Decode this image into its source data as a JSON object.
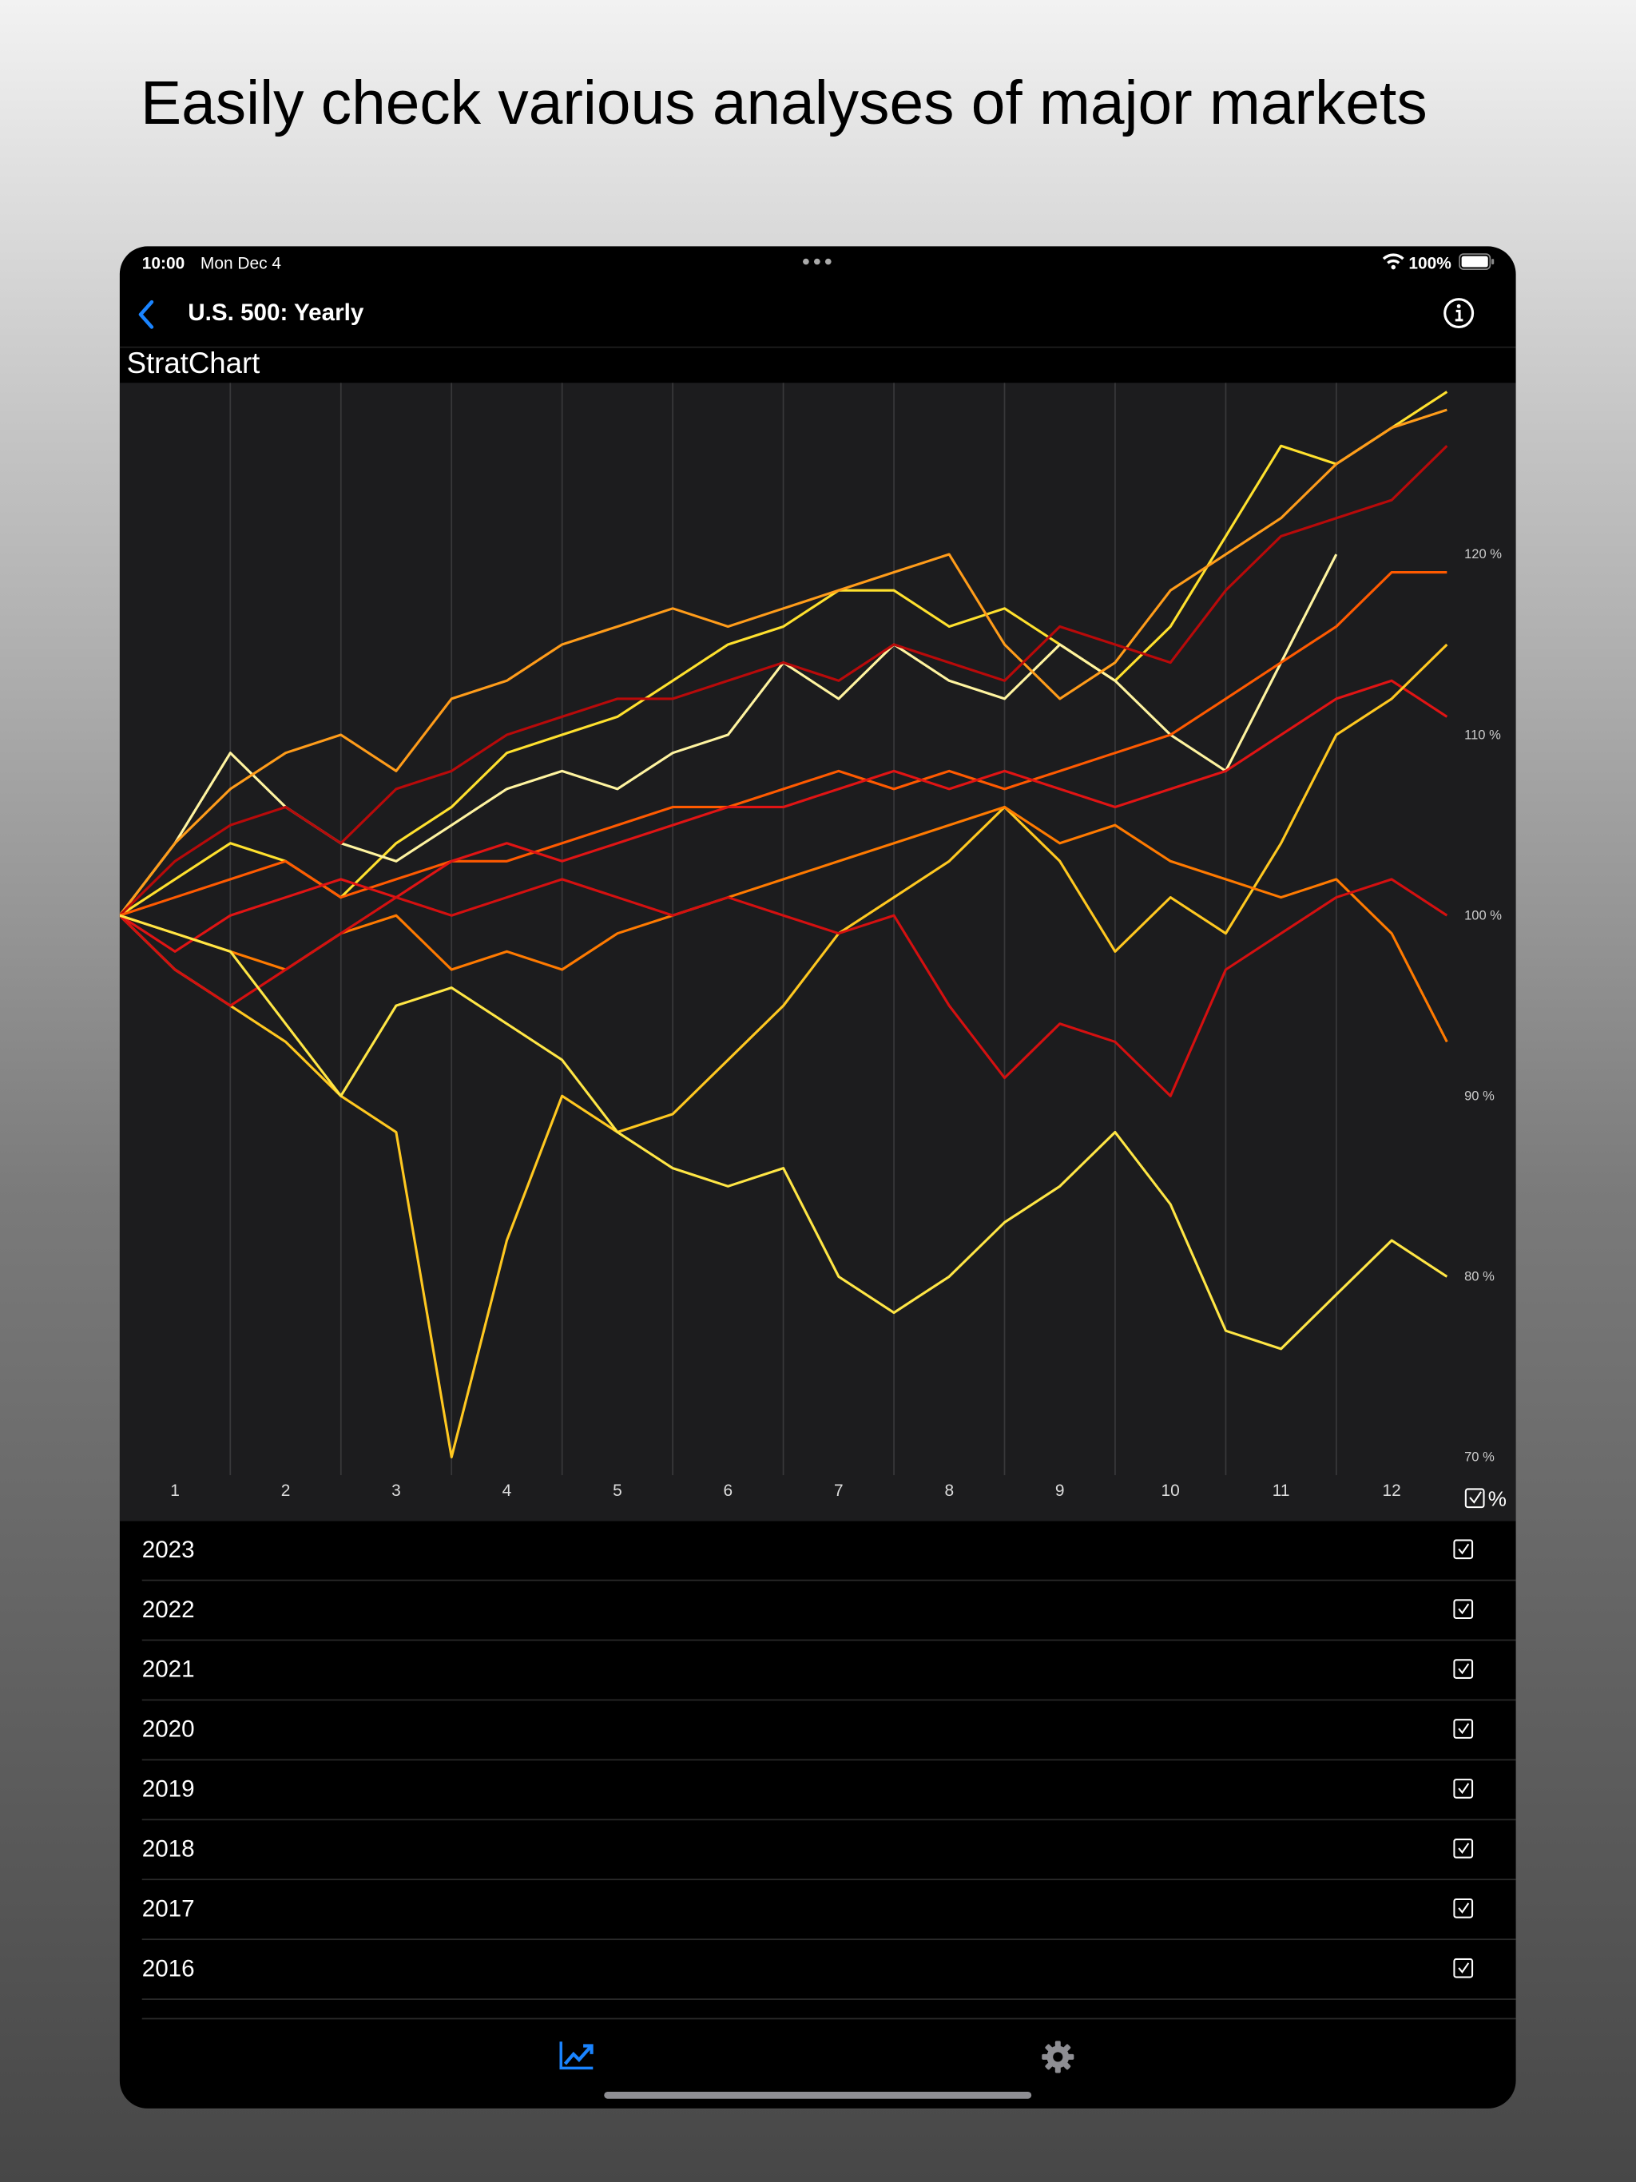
{
  "headline": "Easily check various analyses of major markets",
  "status_bar": {
    "time": "10:00",
    "date": "Mon Dec 4",
    "battery": "100%"
  },
  "nav": {
    "title": "U.S. 500: Yearly"
  },
  "app_label": "StratChart",
  "percent_toggle_label": "%",
  "chart_data": {
    "type": "line",
    "x": [
      0.5,
      1,
      1.5,
      2,
      2.5,
      3,
      3.5,
      4,
      4.5,
      5,
      5.5,
      6,
      6.5,
      7,
      7.5,
      8,
      8.5,
      9,
      9.5,
      10,
      10.5,
      11,
      11.5,
      12,
      12.5
    ],
    "xlim": [
      0.5,
      12.5
    ],
    "xticks": [
      1,
      2,
      3,
      4,
      5,
      6,
      7,
      8,
      9,
      10,
      11,
      12
    ],
    "ylim": [
      69,
      129.5
    ],
    "yticks": [
      {
        "value": 70,
        "label": "70 %"
      },
      {
        "value": 80,
        "label": "80 %"
      },
      {
        "value": 90,
        "label": "90 %"
      },
      {
        "value": 100,
        "label": "100 %"
      },
      {
        "value": 110,
        "label": "110 %"
      },
      {
        "value": 120,
        "label": "120 %"
      }
    ],
    "grid": true,
    "series": [
      {
        "color": "#ffe12e",
        "values": [
          100,
          102,
          104,
          103,
          101,
          104,
          106,
          109,
          110,
          111,
          113,
          115,
          116,
          118,
          118,
          116,
          117,
          115,
          113,
          116,
          121,
          126,
          125,
          127,
          129
        ]
      },
      {
        "color": "#fff4a0",
        "values": [
          100,
          104,
          109,
          106,
          104,
          103,
          105,
          107,
          108,
          107,
          109,
          110,
          114,
          112,
          115,
          113,
          112,
          115,
          113,
          110,
          108,
          114,
          120,
          null,
          null
        ]
      },
      {
        "color": "#ff9c1a",
        "values": [
          100,
          104,
          107,
          109,
          110,
          108,
          112,
          113,
          115,
          116,
          117,
          116,
          117,
          118,
          119,
          120,
          115,
          112,
          114,
          118,
          120,
          122,
          125,
          127,
          128
        ]
      },
      {
        "color": "#b80a0a",
        "values": [
          100,
          103,
          105,
          106,
          104,
          107,
          108,
          110,
          111,
          112,
          112,
          113,
          114,
          113,
          115,
          114,
          113,
          116,
          115,
          114,
          118,
          121,
          122,
          123,
          126
        ]
      },
      {
        "color": "#ff5a00",
        "values": [
          100,
          101,
          102,
          103,
          101,
          102,
          103,
          103,
          104,
          105,
          106,
          106,
          107,
          108,
          107,
          108,
          107,
          108,
          109,
          110,
          112,
          114,
          116,
          119,
          119
        ]
      },
      {
        "color": "#e01414",
        "values": [
          100,
          98,
          100,
          101,
          102,
          101,
          103,
          104,
          103,
          104,
          105,
          106,
          106,
          107,
          108,
          107,
          108,
          107,
          106,
          107,
          108,
          110,
          112,
          113,
          111
        ]
      },
      {
        "color": "#ffc820",
        "values": [
          100,
          97,
          95,
          93,
          90,
          88,
          70,
          82,
          90,
          88,
          89,
          92,
          95,
          99,
          101,
          103,
          106,
          103,
          98,
          101,
          99,
          104,
          110,
          112,
          115
        ]
      },
      {
        "color": "#ff7a00",
        "values": [
          100,
          99,
          98,
          97,
          99,
          100,
          97,
          98,
          97,
          99,
          100,
          101,
          102,
          103,
          104,
          105,
          106,
          104,
          105,
          103,
          102,
          101,
          102,
          99,
          93
        ]
      },
      {
        "color": "#d41010",
        "values": [
          100,
          97,
          95,
          97,
          99,
          101,
          100,
          101,
          102,
          101,
          100,
          101,
          100,
          99,
          100,
          95,
          91,
          94,
          93,
          90,
          97,
          99,
          101,
          102,
          100
        ]
      },
      {
        "color": "#ffe645",
        "values": [
          100,
          99,
          98,
          94,
          90,
          95,
          96,
          94,
          92,
          88,
          86,
          85,
          86,
          80,
          78,
          80,
          83,
          85,
          88,
          84,
          77,
          76,
          79,
          82,
          80
        ]
      }
    ]
  },
  "year_list": [
    "2023",
    "2022",
    "2021",
    "2020",
    "2019",
    "2018",
    "2017",
    "2016"
  ]
}
